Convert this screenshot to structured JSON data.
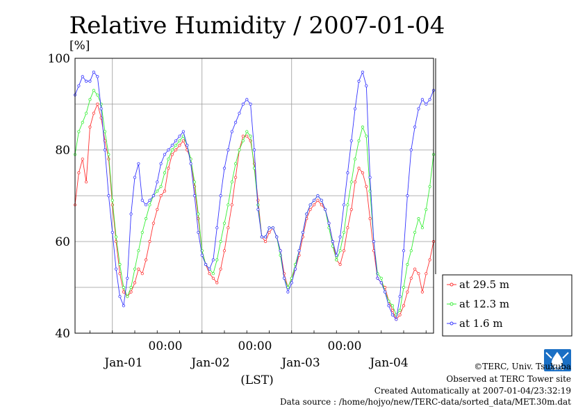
{
  "chart_data": {
    "type": "line",
    "title": "Relative Humidity / 2007-01-04",
    "ylabel": "[%]",
    "xlabel": "(LST)",
    "ylim": [
      40,
      100
    ],
    "yticks": [
      "100",
      "80",
      "60",
      "40"
    ],
    "xlim_hours": [
      -10,
      86
    ],
    "midnight_labels": [
      "00:00",
      "00:00",
      "00:00"
    ],
    "date_labels": [
      "Jan-01",
      "Jan-02",
      "Jan-03",
      "Jan-04"
    ],
    "grid": true,
    "legend_position": "right",
    "colors": {
      "series_29_5": "#ff3030",
      "series_12_3": "#33ee33",
      "series_1_6": "#3333ff"
    },
    "series": [
      {
        "name": "at 29.5 m",
        "x": [
          -10,
          -9,
          -8,
          -7,
          -6,
          -5,
          -4,
          -3,
          -2,
          -1,
          0,
          1,
          2,
          3,
          4,
          5,
          6,
          7,
          8,
          9,
          10,
          11,
          12,
          13,
          14,
          15,
          16,
          17,
          18,
          19,
          20,
          21,
          22,
          23,
          24,
          25,
          26,
          27,
          28,
          29,
          30,
          31,
          32,
          33,
          34,
          35,
          36,
          37,
          38,
          39,
          40,
          41,
          42,
          43,
          44,
          45,
          46,
          47,
          48,
          49,
          50,
          51,
          52,
          53,
          54,
          55,
          56,
          57,
          58,
          59,
          60,
          61,
          62,
          63,
          64,
          65,
          66,
          67,
          68,
          69,
          70,
          71,
          72,
          73,
          74,
          75,
          76,
          77,
          78,
          79,
          80,
          81,
          82,
          83,
          84,
          85,
          86
        ],
        "values": [
          68,
          75,
          78,
          73,
          85,
          88,
          90,
          87,
          82,
          78,
          68,
          60,
          53,
          49,
          48,
          49,
          51,
          54,
          53,
          56,
          60,
          64,
          67,
          70,
          71,
          76,
          79,
          80,
          81,
          82,
          80,
          78,
          72,
          65,
          58,
          55,
          53,
          52,
          51,
          54,
          58,
          63,
          68,
          74,
          80,
          83,
          83,
          82,
          77,
          69,
          61,
          60,
          62,
          63,
          61,
          58,
          53,
          50,
          52,
          54,
          57,
          61,
          65,
          67,
          68,
          69,
          68,
          67,
          64,
          60,
          56,
          55,
          58,
          63,
          67,
          73,
          76,
          75,
          72,
          65,
          58,
          52,
          51,
          50,
          47,
          45,
          43,
          44,
          46,
          49,
          52,
          54,
          53,
          49,
          53,
          56,
          60
        ]
      },
      {
        "name": "at 12.3 m",
        "x": [
          -10,
          -9,
          -8,
          -7,
          -6,
          -5,
          -4,
          -3,
          -2,
          -1,
          0,
          1,
          2,
          3,
          4,
          5,
          6,
          7,
          8,
          9,
          10,
          11,
          12,
          13,
          14,
          15,
          16,
          17,
          18,
          19,
          20,
          21,
          22,
          23,
          24,
          25,
          26,
          27,
          28,
          29,
          30,
          31,
          32,
          33,
          34,
          35,
          36,
          37,
          38,
          39,
          40,
          41,
          42,
          43,
          44,
          45,
          46,
          47,
          48,
          49,
          50,
          51,
          52,
          53,
          54,
          55,
          56,
          57,
          58,
          59,
          60,
          61,
          62,
          63,
          64,
          65,
          66,
          67,
          68,
          69,
          70,
          71,
          72,
          73,
          74,
          75,
          76,
          77,
          78,
          79,
          80,
          81,
          82,
          83,
          84,
          85,
          86
        ],
        "values": [
          79,
          84,
          86,
          88,
          91,
          93,
          92,
          90,
          84,
          79,
          69,
          61,
          55,
          50,
          48,
          50,
          54,
          58,
          62,
          65,
          68,
          70,
          71,
          72,
          75,
          78,
          80,
          81,
          82,
          83,
          81,
          78,
          73,
          66,
          58,
          55,
          54,
          53,
          56,
          60,
          64,
          68,
          73,
          77,
          80,
          82,
          84,
          83,
          76,
          68,
          61,
          61,
          63,
          63,
          61,
          57,
          52,
          50,
          52,
          55,
          58,
          62,
          66,
          68,
          69,
          70,
          69,
          67,
          63,
          59,
          56,
          58,
          62,
          68,
          73,
          78,
          82,
          85,
          83,
          71,
          60,
          53,
          52,
          49,
          47,
          46,
          44,
          45,
          50,
          55,
          58,
          62,
          65,
          63,
          67,
          72,
          79
        ]
      },
      {
        "name": "at 1.6 m",
        "x": [
          -10,
          -9,
          -8,
          -7,
          -6,
          -5,
          -4,
          -3,
          -2,
          -1,
          0,
          1,
          2,
          3,
          4,
          5,
          6,
          7,
          8,
          9,
          10,
          11,
          12,
          13,
          14,
          15,
          16,
          17,
          18,
          19,
          20,
          21,
          22,
          23,
          24,
          25,
          26,
          27,
          28,
          29,
          30,
          31,
          32,
          33,
          34,
          35,
          36,
          37,
          38,
          39,
          40,
          41,
          42,
          43,
          44,
          45,
          46,
          47,
          48,
          49,
          50,
          51,
          52,
          53,
          54,
          55,
          56,
          57,
          58,
          59,
          60,
          61,
          62,
          63,
          64,
          65,
          66,
          67,
          68,
          69,
          70,
          71,
          72,
          73,
          74,
          75,
          76,
          77,
          78,
          79,
          80,
          81,
          82,
          83,
          84,
          85,
          86
        ],
        "values": [
          92,
          94,
          96,
          95,
          95,
          97,
          96,
          89,
          80,
          70,
          62,
          54,
          48,
          46,
          52,
          66,
          74,
          77,
          69,
          68,
          69,
          70,
          73,
          77,
          79,
          80,
          81,
          82,
          83,
          84,
          81,
          77,
          70,
          62,
          57,
          55,
          54,
          56,
          63,
          70,
          76,
          80,
          84,
          86,
          88,
          90,
          91,
          90,
          80,
          67,
          61,
          61,
          63,
          63,
          61,
          58,
          52,
          49,
          51,
          54,
          58,
          62,
          66,
          68,
          69,
          70,
          69,
          67,
          64,
          60,
          57,
          61,
          68,
          75,
          82,
          89,
          95,
          97,
          94,
          74,
          60,
          52,
          51,
          49,
          46,
          44,
          43,
          48,
          58,
          70,
          80,
          85,
          89,
          91,
          90,
          91,
          93
        ]
      }
    ],
    "footer": {
      "credit": "©TERC, Univ. Tsukuba",
      "observed": "Observed at TERC Tower site",
      "created": "Created Automatically at 2007-01-04/23:32:19",
      "source": "Data source : /home/hojyo/new/TERC-data/sorted_data/MET.30m.dat"
    },
    "logo_text": "TERC"
  }
}
